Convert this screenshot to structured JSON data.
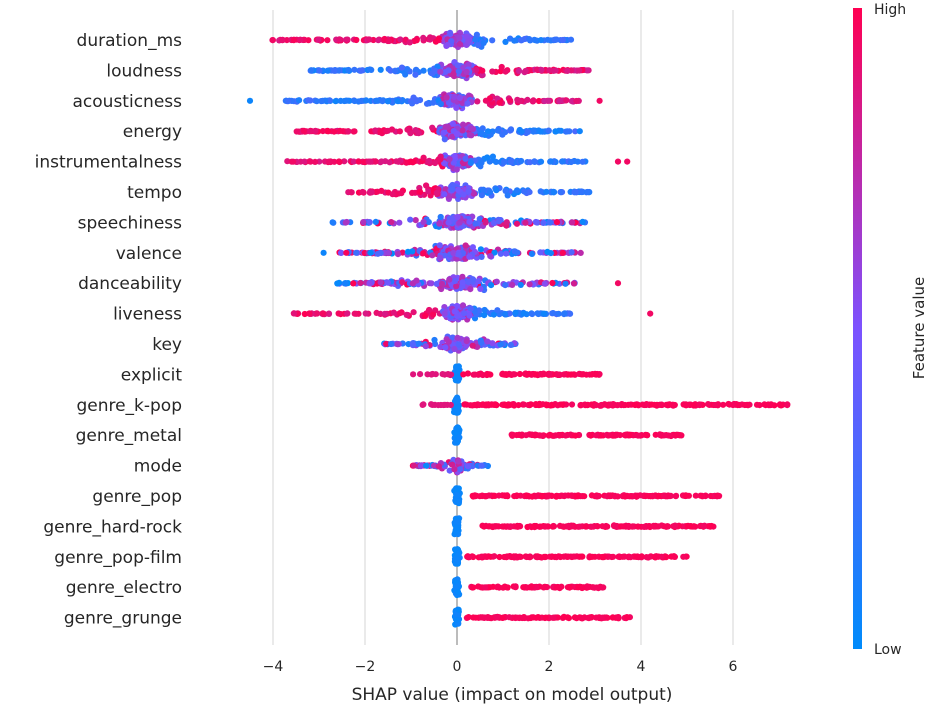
{
  "chart_data": {
    "type": "scatter",
    "subtype": "shap-beeswarm",
    "title": "",
    "xlabel": "SHAP value (impact on model output)",
    "ylabel": "",
    "xlim": [
      -5,
      8
    ],
    "xticks": [
      -4,
      -2,
      0,
      2,
      4,
      6
    ],
    "x_tick_labels": [
      "−4",
      "−2",
      "0",
      "2",
      "4",
      "6"
    ],
    "grid": "vertical",
    "colorbar": {
      "title": "Feature value",
      "high_label": "High",
      "low_label": "Low",
      "low_color": "#008bfb",
      "high_color": "#ff0052"
    },
    "features": [
      {
        "name": "duration_ms",
        "min": -4.1,
        "max": 2.5,
        "outliers": [],
        "high_side": "neg",
        "core_width": 0.7
      },
      {
        "name": "loudness",
        "min": -3.2,
        "max": 3.1,
        "outliers": [],
        "high_side": "pos",
        "core_width": 0.8
      },
      {
        "name": "acousticness",
        "min": -4.0,
        "max": 2.7,
        "outliers": [
          -4.5,
          3.1
        ],
        "high_side": "pos",
        "core_width": 0.7
      },
      {
        "name": "energy",
        "min": -3.5,
        "max": 2.7,
        "outliers": [],
        "high_side": "neg",
        "core_width": 0.8
      },
      {
        "name": "instrumentalness",
        "min": -3.7,
        "max": 2.8,
        "outliers": [
          3.5,
          3.7
        ],
        "high_side": "neg",
        "core_width": 0.6
      },
      {
        "name": "tempo",
        "min": -2.5,
        "max": 2.9,
        "outliers": [],
        "high_side": "neg",
        "core_width": 0.8
      },
      {
        "name": "speechiness",
        "min": -2.8,
        "max": 2.8,
        "outliers": [],
        "high_side": "mix",
        "core_width": 0.7
      },
      {
        "name": "valence",
        "min": -2.6,
        "max": 2.7,
        "outliers": [
          -2.9
        ],
        "high_side": "mix",
        "core_width": 0.8
      },
      {
        "name": "danceability",
        "min": -2.7,
        "max": 2.6,
        "outliers": [
          3.5
        ],
        "high_side": "mix",
        "core_width": 0.8
      },
      {
        "name": "liveness",
        "min": -3.6,
        "max": 2.5,
        "outliers": [
          4.2
        ],
        "high_side": "neg",
        "core_width": 0.7
      },
      {
        "name": "key",
        "min": -1.6,
        "max": 1.3,
        "outliers": [],
        "high_side": "mix",
        "core_width": 0.5
      },
      {
        "name": "explicit",
        "min": -1.0,
        "max": 3.2,
        "outliers": [],
        "high_side": "pos",
        "core_width": 0.15
      },
      {
        "name": "genre_k-pop",
        "min": -0.8,
        "max": 7.2,
        "outliers": [],
        "high_side": "pos",
        "core_width": 0.1
      },
      {
        "name": "genre_metal",
        "min": 1.1,
        "max": 4.9,
        "outliers": [],
        "high_side": "pos",
        "core_width": 0.1
      },
      {
        "name": "mode",
        "min": -1.0,
        "max": 0.7,
        "outliers": [],
        "high_side": "mix",
        "core_width": 0.2
      },
      {
        "name": "genre_pop",
        "min": 0.3,
        "max": 5.7,
        "outliers": [],
        "high_side": "pos",
        "core_width": 0.1
      },
      {
        "name": "genre_hard-rock",
        "min": 0.5,
        "max": 5.6,
        "outliers": [],
        "high_side": "pos",
        "core_width": 0.1
      },
      {
        "name": "genre_pop-film",
        "min": 0.2,
        "max": 5.0,
        "outliers": [],
        "high_side": "pos",
        "core_width": 0.1
      },
      {
        "name": "genre_electro",
        "min": 0.3,
        "max": 3.2,
        "outliers": [],
        "high_side": "pos",
        "core_width": 0.1
      },
      {
        "name": "genre_grunge",
        "min": 0.2,
        "max": 3.8,
        "outliers": [],
        "high_side": "pos",
        "core_width": 0.1
      }
    ]
  }
}
